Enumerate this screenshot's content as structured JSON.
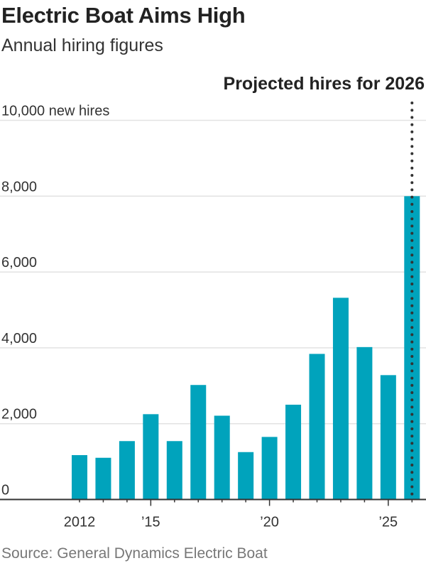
{
  "title": "Electric Boat Aims High",
  "subtitle": "Annual hiring figures",
  "source": "Source: General Dynamics Electric Boat",
  "chart_data": {
    "type": "bar",
    "title": "Electric Boat Aims High",
    "subtitle": "Annual hiring figures",
    "x": [
      2012,
      2013,
      2014,
      2015,
      2016,
      2017,
      2018,
      2019,
      2020,
      2021,
      2022,
      2023,
      2024,
      2025,
      2026
    ],
    "values": [
      1170,
      1100,
      1540,
      2250,
      1540,
      3020,
      2210,
      1250,
      1650,
      2500,
      3840,
      5320,
      4020,
      3280,
      8000
    ],
    "projected_year": 2026,
    "annotation": "Projected hires for 2026",
    "ylim": [
      0,
      10000
    ],
    "yticks": [
      0,
      2000,
      4000,
      6000,
      8000,
      10000
    ],
    "ytick_labels": [
      "0",
      "2,000",
      "4,000",
      "6,000",
      "8,000",
      "10,000 new hires"
    ],
    "xtick_labels": [
      {
        "year": 2012,
        "label": "2012"
      },
      {
        "year": 2015,
        "label": "’15"
      },
      {
        "year": 2020,
        "label": "’20"
      },
      {
        "year": 2025,
        "label": "’25"
      }
    ],
    "grid": true,
    "color": "#00a3bc"
  }
}
